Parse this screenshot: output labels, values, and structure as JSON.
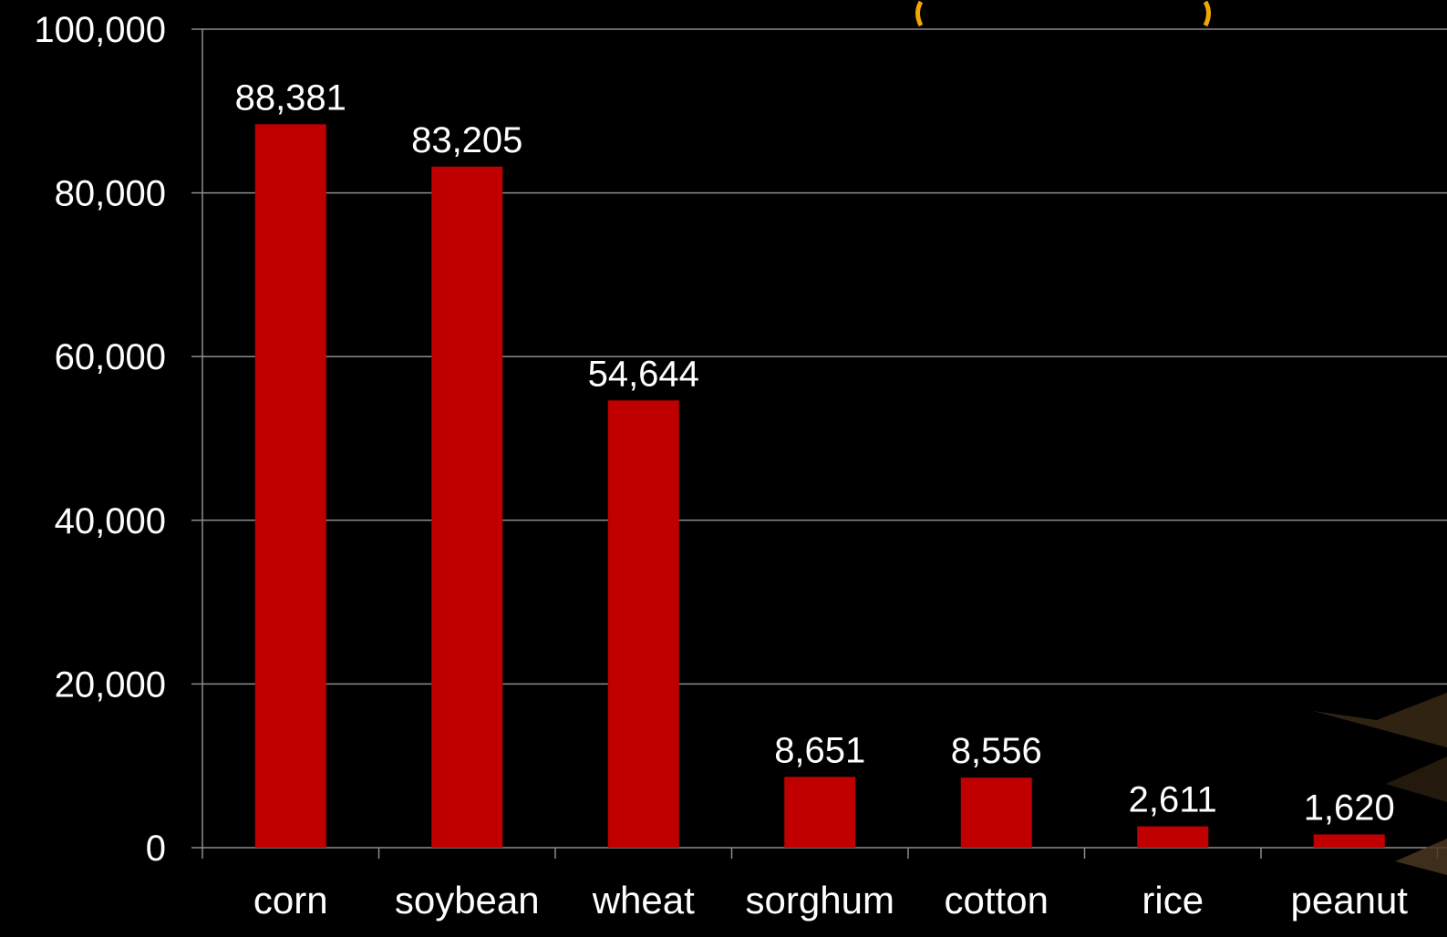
{
  "chart_data": {
    "type": "bar",
    "title": "",
    "xlabel": "",
    "ylabel": "",
    "categories": [
      "corn",
      "soybean",
      "wheat",
      "sorghum",
      "cotton",
      "rice",
      "peanut"
    ],
    "values": [
      88381,
      83205,
      54644,
      8651,
      8556,
      2611,
      1620
    ],
    "data_labels": [
      "88,381",
      "83,205",
      "54,644",
      "8,651",
      "8,556",
      "2,611",
      "1,620"
    ],
    "yticks": [
      0,
      20000,
      40000,
      60000,
      80000,
      100000
    ],
    "ytick_labels": [
      "0",
      "20,000",
      "40,000",
      "60,000",
      "80,000",
      "100,000"
    ],
    "ylim": [
      0,
      100000
    ],
    "grid": true,
    "legend": "none",
    "colors": {
      "background": "#000000",
      "bar": "#c00000",
      "text": "#ffffff",
      "gridline": "#8c8c8c",
      "title_fragment": "#f0a800"
    }
  }
}
